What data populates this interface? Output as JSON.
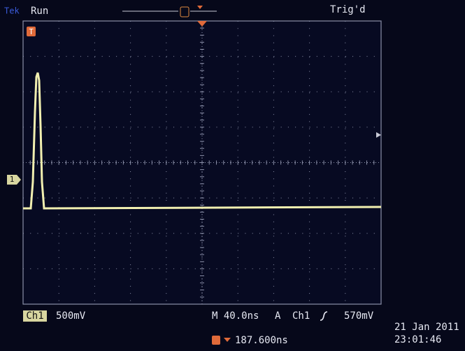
{
  "header": {
    "brand": "Tek",
    "status": "Run",
    "trigger_state": "Trig'd"
  },
  "markers": {
    "trigger": "T",
    "channel": "1"
  },
  "footer": {
    "channel": "Ch1",
    "volts_per_div": "500mV",
    "timebase": "M 40.0ns",
    "trigger_mode": "A",
    "trigger_source": "Ch1",
    "trigger_level": "570mV",
    "trigger_position": "187.600ns",
    "date": "21 Jan  2011",
    "time": "23:01:46"
  }
}
